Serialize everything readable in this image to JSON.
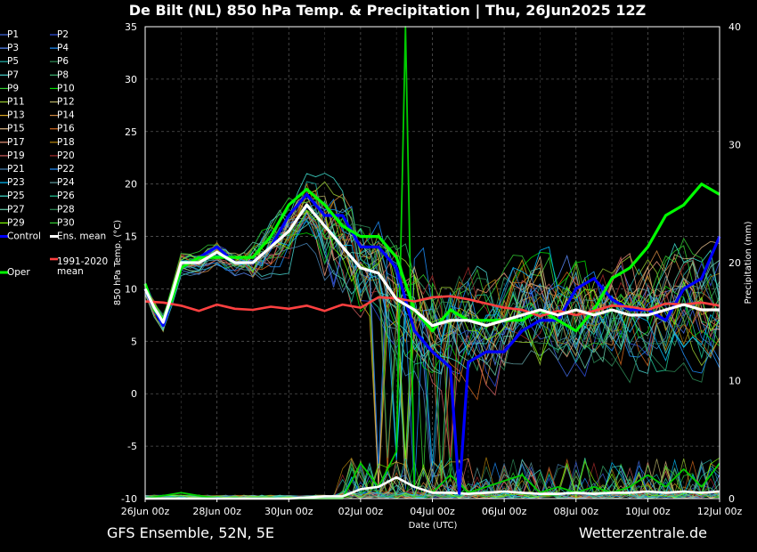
{
  "chart_data": {
    "type": "line",
    "title": "De Bilt  (NL)  850 hPa Temp. & Precipitation | Thu, 26Jun2025 12Z",
    "xlabel": "Date (UTC)",
    "ylabel": "850 hPa Temp. (°C)",
    "y2label": "Precipitation (mm)",
    "footer_left": "GFS Ensemble, 52N, 5E",
    "footer_right": "Wetterzentrale.de",
    "x_ticks": [
      "26Jun 00z",
      "28Jun 00z",
      "30Jun 00z",
      "02Jul 00z",
      "04Jul 00z",
      "06Jul 00z",
      "08Jul 00z",
      "10Jul 00z",
      "12Jul 00z"
    ],
    "x_range_days": [
      0,
      16
    ],
    "ylim": [
      -10,
      35
    ],
    "y_ticks": [
      "-10",
      "-5",
      "0",
      "5",
      "10",
      "15",
      "20",
      "25",
      "30",
      "35"
    ],
    "y2lim": [
      0,
      40
    ],
    "y2_ticks": [
      "0",
      "10",
      "20",
      "30",
      "40"
    ],
    "grid": true,
    "legend": {
      "left_column": [
        "P1",
        "P3",
        "P5",
        "P7",
        "P9",
        "P11",
        "P13",
        "P15",
        "P17",
        "P19",
        "P21",
        "P23",
        "P25",
        "P27",
        "P29",
        "Control"
      ],
      "right_column": [
        "P2",
        "P4",
        "P6",
        "P8",
        "P10",
        "P12",
        "P14",
        "P16",
        "P18",
        "P20",
        "P22",
        "P24",
        "P26",
        "P28",
        "P30",
        "Ens. mean"
      ],
      "extra_left": "Oper",
      "extra_right_line1": "1991-2020",
      "extra_right_line2": "mean"
    },
    "legend_colors": {
      "P1": "#4169e1",
      "P2": "#3050e0",
      "P3": "#5a8cff",
      "P4": "#1e90ff",
      "P5": "#20b2aa",
      "P6": "#2e8b57",
      "P7": "#48d1cc",
      "P8": "#3cb371",
      "P9": "#32cd32",
      "P10": "#00dd00",
      "P11": "#9acd32",
      "P12": "#bdb76b",
      "P13": "#daa520",
      "P14": "#cd853f",
      "P15": "#deb887",
      "P16": "#d2691e",
      "P17": "#e9967a",
      "P18": "#b8860b",
      "P19": "#cd5c5c",
      "P20": "#a52a2a",
      "P21": "#4682b4",
      "P22": "#1e90ff",
      "P23": "#00bfff",
      "P24": "#5f9ea0",
      "P25": "#40e0d0",
      "P26": "#20c997",
      "P27": "#66cdaa",
      "P28": "#2e8b57",
      "P29": "#7cfc00",
      "P30": "#32cd32",
      "Control": "#0000ff",
      "Ens. mean": "#ffffff",
      "Oper": "#00ff00",
      "1991-2020 mean": "#ff4040"
    },
    "series": [
      {
        "name": "Control",
        "color": "#0000ff",
        "x": [
          0,
          0.25,
          0.5,
          0.75,
          1,
          1.5,
          2,
          2.5,
          3,
          3.5,
          4,
          4.5,
          5,
          5.5,
          6,
          6.5,
          7,
          7.5,
          8,
          8.5,
          8.75,
          9,
          9.25,
          9.5,
          10,
          10.5,
          11,
          11.5,
          12,
          12.5,
          13,
          13.5,
          14,
          14.5,
          15,
          15.5,
          16
        ],
        "y": [
          10,
          8,
          6.5,
          9,
          12,
          13,
          14,
          12.5,
          12.5,
          14,
          17,
          19,
          17,
          17,
          14,
          14,
          12,
          6,
          4,
          2.5,
          -9.5,
          3,
          3.5,
          4,
          4,
          6,
          7,
          7,
          10,
          11,
          9,
          8,
          8,
          7,
          10,
          11,
          15
        ]
      },
      {
        "name": "Oper",
        "color": "#00ff00",
        "x": [
          0,
          0.25,
          0.5,
          0.75,
          1,
          1.5,
          2,
          2.5,
          3,
          3.5,
          4,
          4.5,
          5,
          5.5,
          6,
          6.5,
          7,
          7.5,
          8,
          8.5,
          9,
          9.5,
          10,
          10.5,
          11,
          11.5,
          12,
          12.5,
          13,
          13.5,
          14,
          14.5,
          15,
          15.5,
          16
        ],
        "y": [
          10.5,
          8,
          7,
          9,
          12,
          13,
          13,
          13,
          13,
          15,
          18,
          19.5,
          18,
          16,
          15,
          15,
          13,
          8,
          6,
          8,
          7,
          7,
          7,
          7,
          8,
          7,
          6,
          8,
          11,
          12,
          14,
          17,
          18,
          20,
          19
        ]
      },
      {
        "name": "Ens. mean",
        "color": "#ffffff",
        "x": [
          0,
          0.25,
          0.5,
          0.75,
          1,
          1.5,
          2,
          2.5,
          3,
          3.5,
          4,
          4.5,
          5,
          5.5,
          6,
          6.5,
          7,
          7.5,
          8,
          8.5,
          9,
          9.5,
          10,
          10.5,
          11,
          11.5,
          12,
          12.5,
          13,
          13.5,
          14,
          14.5,
          15,
          15.5,
          16
        ],
        "y": [
          10,
          8.2,
          6.8,
          9.5,
          12.5,
          12.5,
          13.5,
          12.5,
          12.5,
          14,
          15.5,
          18,
          16,
          14,
          12,
          11.5,
          9,
          8,
          6.5,
          7,
          7,
          6.5,
          7,
          7.5,
          8,
          7.5,
          8,
          7.5,
          8,
          7.5,
          7.5,
          8,
          8.5,
          8,
          8
        ]
      },
      {
        "name": "1991-2020 mean",
        "color": "#ff4040",
        "x": [
          0,
          0.5,
          1,
          1.5,
          2,
          2.5,
          3,
          3.5,
          4,
          4.5,
          5,
          5.5,
          6,
          6.5,
          7,
          7.5,
          8,
          8.5,
          9,
          9.5,
          10,
          10.5,
          11,
          11.5,
          12,
          12.5,
          13,
          13.5,
          14,
          14.5,
          15,
          15.5,
          16
        ],
        "y": [
          8.8,
          8.7,
          8.4,
          7.9,
          8.5,
          8.1,
          8.0,
          8.3,
          8.1,
          8.4,
          7.9,
          8.5,
          8.2,
          9.2,
          9.1,
          8.8,
          9.2,
          9.3,
          9.0,
          8.6,
          8.2,
          8.0,
          7.4,
          7.9,
          7.5,
          7.9,
          8.4,
          8.3,
          8.0,
          8.6,
          8.5,
          8.7,
          8.4
        ]
      },
      {
        "name": "Precipitation members",
        "axis": "y2",
        "x": [
          0,
          1,
          2,
          3,
          4,
          5,
          5.5,
          6,
          6.5,
          7,
          7.25,
          7.5,
          8,
          8.5,
          9,
          9.5,
          10,
          10.5,
          11,
          11.5,
          12,
          12.5,
          13,
          13.5,
          14,
          14.5,
          15,
          15.5,
          16
        ],
        "y": [
          0,
          0.5,
          0,
          0,
          0,
          0,
          0,
          3,
          1,
          4,
          40,
          1,
          0.5,
          2,
          0.5,
          1,
          1.5,
          2,
          0.5,
          1,
          0.5,
          1,
          0.5,
          1,
          2,
          1,
          2.5,
          1,
          3
        ]
      },
      {
        "name": "Ensemble mean precipitation",
        "axis": "y2",
        "x": [
          0,
          1,
          2,
          3,
          4,
          5,
          5.5,
          6,
          6.5,
          7,
          7.5,
          8,
          8.5,
          9,
          9.5,
          10,
          10.5,
          11,
          11.5,
          12,
          12.5,
          13,
          13.5,
          14,
          14.5,
          15,
          15.5,
          16
        ],
        "y": [
          0,
          0,
          0,
          0,
          0,
          0.2,
          0.2,
          0.8,
          1,
          1.8,
          1,
          0.5,
          0.5,
          0.4,
          0.5,
          0.6,
          0.5,
          0.4,
          0.4,
          0.5,
          0.4,
          0.5,
          0.5,
          0.6,
          0.5,
          0.6,
          0.5,
          0.6
        ]
      }
    ]
  }
}
